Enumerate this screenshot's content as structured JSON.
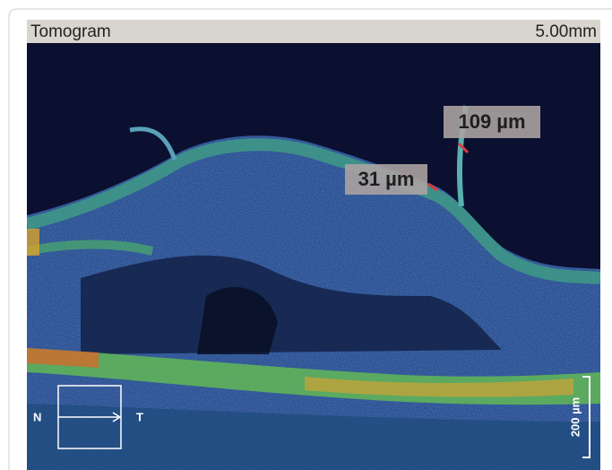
{
  "header": {
    "title": "Tomogram",
    "scale": "5.00mm"
  },
  "annotations": [
    "109 µm",
    "31 µm"
  ],
  "orientation": {
    "left": "N",
    "right": "T"
  },
  "scale_bar": "200 µm"
}
